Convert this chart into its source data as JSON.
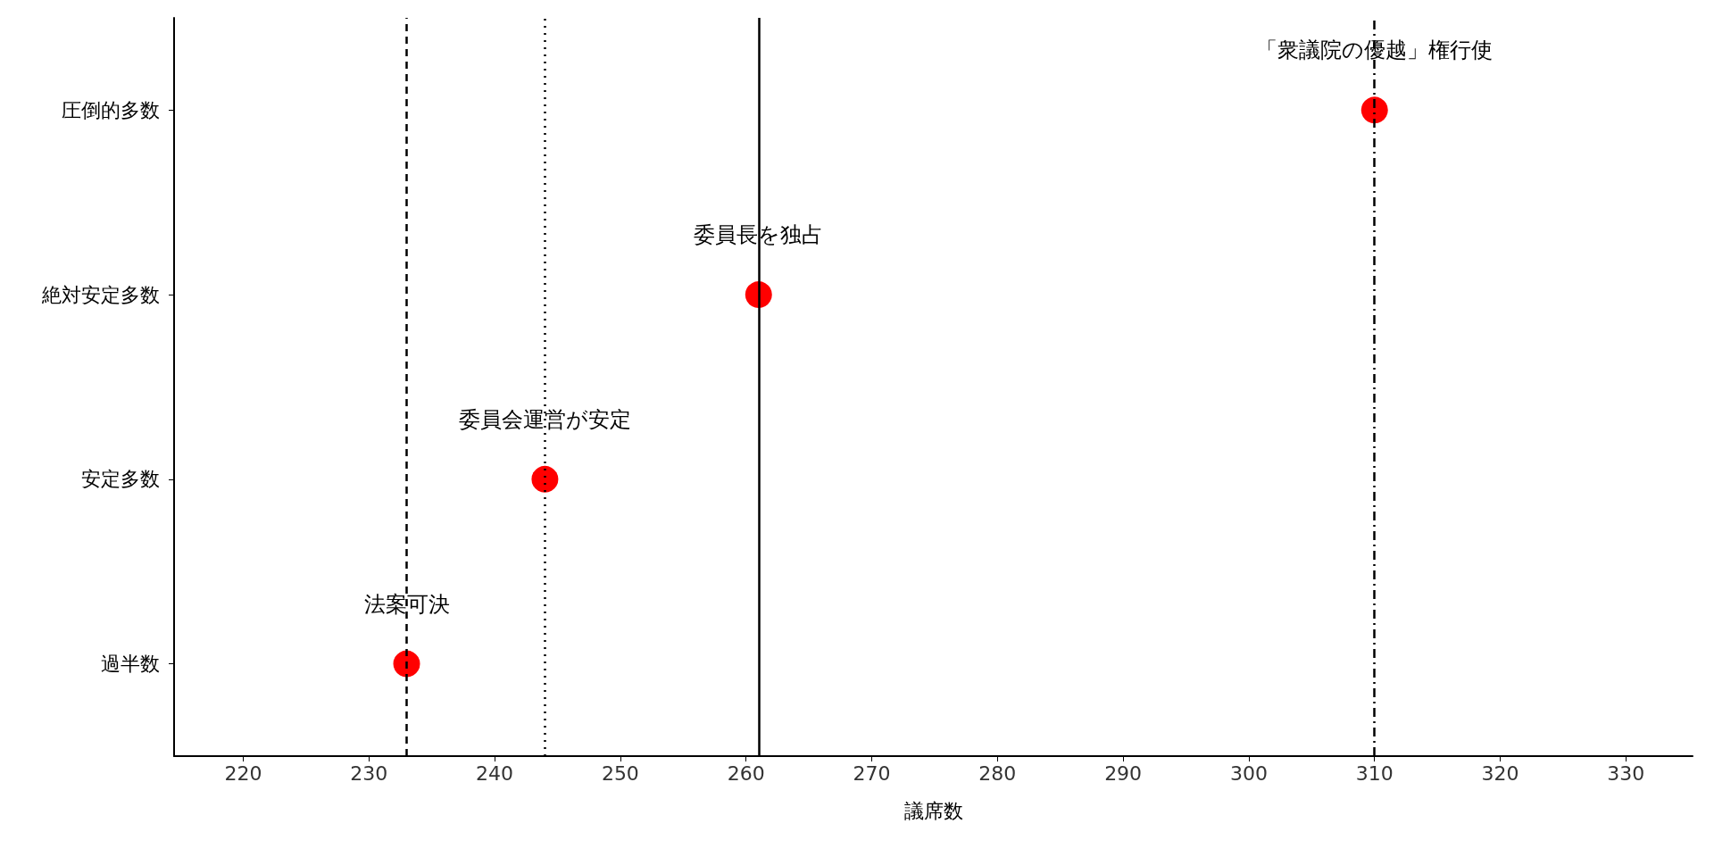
{
  "chart_data": {
    "type": "scatter",
    "orientation": "horizontal",
    "xlabel": "議席数",
    "categories": [
      "圧倒的多数",
      "絶対安定多数",
      "安定多数",
      "過半数"
    ],
    "values": [
      310,
      261,
      244,
      233
    ],
    "color": "#ff0000",
    "marker": "circle",
    "xlim": [
      214.5,
      335.3
    ],
    "xticks": [
      220,
      230,
      240,
      250,
      260,
      270,
      280,
      290,
      300,
      310,
      320,
      330
    ],
    "grid": false,
    "ref_lines": [
      {
        "axis": "x",
        "value": 233,
        "label": null,
        "color": "#000000",
        "line_style": "dashed"
      },
      {
        "axis": "x",
        "value": 244,
        "label": null,
        "color": "#000000",
        "line_style": "dotted"
      },
      {
        "axis": "x",
        "value": 261,
        "label": null,
        "color": "#000000",
        "line_style": "solid"
      },
      {
        "axis": "x",
        "value": 310,
        "label": null,
        "color": "#000000",
        "line_style": "dashdot"
      }
    ],
    "annotations": [
      {
        "text": "「衆議院の優越」権行使",
        "x": 310,
        "y": "圧倒的多数"
      },
      {
        "text": "委員長を独占",
        "x": 261,
        "y": "絶対安定多数"
      },
      {
        "text": "委員会運営が安定",
        "x": 244,
        "y": "安定多数"
      },
      {
        "text": "法案可決",
        "x": 233,
        "y": "過半数"
      }
    ]
  }
}
